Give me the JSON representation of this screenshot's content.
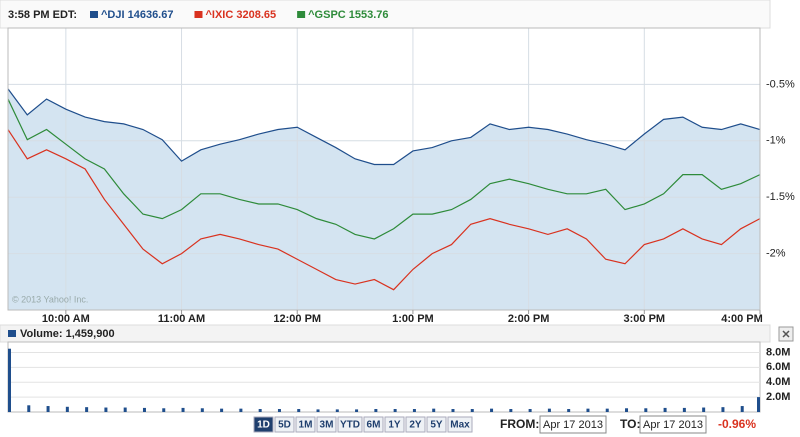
{
  "timestamp": "3:58 PM EDT:",
  "chart_data": [
    {
      "type": "line",
      "annotation": "© 2013 Yahoo! Inc.",
      "x": [
        570,
        580,
        590,
        600,
        610,
        620,
        630,
        640,
        650,
        660,
        670,
        680,
        690,
        700,
        710,
        720,
        730,
        740,
        750,
        760,
        770,
        780,
        790,
        800,
        810,
        820,
        830,
        840,
        850,
        860,
        870,
        880,
        890,
        900,
        910,
        920,
        930,
        940,
        950,
        960
      ],
      "xlim": [
        570,
        960
      ],
      "xticks": [
        {
          "value": 600,
          "label": "10:00 AM"
        },
        {
          "value": 660,
          "label": "11:00 AM"
        },
        {
          "value": 720,
          "label": "12:00 PM"
        },
        {
          "value": 780,
          "label": "1:00 PM"
        },
        {
          "value": 840,
          "label": "2:00 PM"
        },
        {
          "value": 900,
          "label": "3:00 PM"
        },
        {
          "value": 960,
          "label": "4:00 PM"
        }
      ],
      "ylim": [
        -2.5,
        0
      ],
      "yticks": [
        {
          "value": -0.5,
          "label": "-0.5%"
        },
        {
          "value": -1,
          "label": "-1%"
        },
        {
          "value": -1.5,
          "label": "-1.5%"
        },
        {
          "value": -2,
          "label": "-2%"
        }
      ],
      "grid": true,
      "series": [
        {
          "name": "^DJI 14636.67",
          "color": "#1f4e8c",
          "fill": "#d4e4f1",
          "values": [
            -0.54,
            -0.77,
            -0.63,
            -0.72,
            -0.79,
            -0.83,
            -0.85,
            -0.9,
            -0.99,
            -1.18,
            -1.08,
            -1.03,
            -0.99,
            -0.94,
            -0.9,
            -0.88,
            -0.97,
            -1.06,
            -1.16,
            -1.21,
            -1.21,
            -1.09,
            -1.06,
            -1.0,
            -0.97,
            -0.85,
            -0.9,
            -0.88,
            -0.9,
            -0.94,
            -0.99,
            -1.03,
            -1.08,
            -0.94,
            -0.81,
            -0.79,
            -0.88,
            -0.9,
            -0.85,
            -0.9
          ]
        },
        {
          "name": "^IXIC 3208.65",
          "color": "#d9321f",
          "values": [
            -0.9,
            -1.16,
            -1.08,
            -1.16,
            -1.25,
            -1.52,
            -1.74,
            -1.96,
            -2.09,
            -2.0,
            -1.87,
            -1.83,
            -1.87,
            -1.92,
            -1.96,
            -2.05,
            -2.14,
            -2.23,
            -2.27,
            -2.23,
            -2.32,
            -2.14,
            -2.0,
            -1.92,
            -1.74,
            -1.69,
            -1.74,
            -1.78,
            -1.83,
            -1.78,
            -1.87,
            -2.05,
            -2.09,
            -1.92,
            -1.87,
            -1.78,
            -1.87,
            -1.92,
            -1.78,
            -1.69
          ]
        },
        {
          "name": "^GSPC 1553.76",
          "color": "#2e8b3a",
          "values": [
            -0.63,
            -0.99,
            -0.9,
            -1.03,
            -1.16,
            -1.25,
            -1.47,
            -1.65,
            -1.69,
            -1.61,
            -1.47,
            -1.47,
            -1.52,
            -1.56,
            -1.56,
            -1.61,
            -1.69,
            -1.74,
            -1.83,
            -1.87,
            -1.78,
            -1.65,
            -1.65,
            -1.61,
            -1.52,
            -1.38,
            -1.34,
            -1.38,
            -1.43,
            -1.47,
            -1.47,
            -1.43,
            -1.61,
            -1.56,
            -1.47,
            -1.3,
            -1.3,
            -1.43,
            -1.38,
            -1.3
          ]
        }
      ]
    },
    {
      "type": "bar",
      "title": "Volume: 1,459,900",
      "color": "#1f4e8c",
      "x": [
        570,
        580,
        590,
        600,
        610,
        620,
        630,
        640,
        650,
        660,
        670,
        680,
        690,
        700,
        710,
        720,
        730,
        740,
        750,
        760,
        770,
        780,
        790,
        800,
        810,
        820,
        830,
        840,
        850,
        860,
        870,
        880,
        890,
        900,
        910,
        920,
        930,
        940,
        950,
        960
      ],
      "xlim": [
        570,
        960
      ],
      "ylim": [
        0,
        9000000
      ],
      "yticks": [
        {
          "value": 2000000,
          "label": "2.0M"
        },
        {
          "value": 4000000,
          "label": "4.0M"
        },
        {
          "value": 6000000,
          "label": "6.0M"
        },
        {
          "value": 8000000,
          "label": "8.0M"
        }
      ],
      "values": [
        8500000,
        900000,
        800000,
        700000,
        650000,
        600000,
        600000,
        550000,
        500000,
        550000,
        500000,
        450000,
        450000,
        400000,
        400000,
        400000,
        350000,
        350000,
        350000,
        400000,
        400000,
        400000,
        450000,
        400000,
        400000,
        450000,
        400000,
        400000,
        450000,
        400000,
        450000,
        450000,
        500000,
        500000,
        550000,
        550000,
        600000,
        650000,
        800000,
        2000000
      ]
    }
  ],
  "controls": {
    "ranges": [
      "1D",
      "5D",
      "1M",
      "3M",
      "YTD",
      "6M",
      "1Y",
      "2Y",
      "5Y",
      "Max"
    ],
    "from_label": "FROM:",
    "from_value": "Apr 17 2013",
    "to_label": "TO:",
    "to_value": "Apr 17 2013",
    "change": "-0.96%"
  }
}
